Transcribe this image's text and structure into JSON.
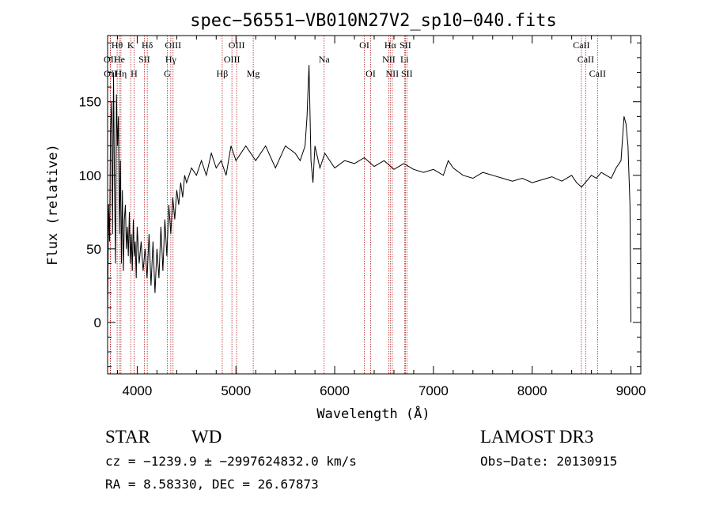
{
  "chart_data": {
    "type": "line",
    "title": "spec−56551−VB010N27V2_sp10−040.fits",
    "xlabel": "Wavelength (Å)",
    "ylabel": "Flux (relative)",
    "xlim": [
      3700,
      9100
    ],
    "ylim": [
      -35,
      195
    ],
    "xticks": [
      "4000",
      "5000",
      "6000",
      "7000",
      "8000",
      "9000"
    ],
    "yticks": [
      "0",
      "50",
      "100",
      "150"
    ],
    "grid": false,
    "line_color": "#000000",
    "marker_color": "#b22222",
    "series": [
      {
        "x": [
          3700,
          3710,
          3720,
          3730,
          3740,
          3750,
          3760,
          3770,
          3780,
          3790,
          3800,
          3810,
          3820,
          3830,
          3840,
          3850,
          3860,
          3870,
          3880,
          3890,
          3900,
          3910,
          3920,
          3930,
          3940,
          3950,
          3960,
          3970,
          3980,
          3990,
          4000,
          4020,
          4040,
          4060,
          4080,
          4100,
          4120,
          4140,
          4160,
          4180,
          4200,
          4220,
          4240,
          4260,
          4280,
          4300,
          4320,
          4340,
          4360,
          4380,
          4400,
          4420,
          4440,
          4460,
          4480,
          4500,
          4550,
          4600,
          4650,
          4700,
          4750,
          4800,
          4850,
          4900,
          4950,
          5000,
          5100,
          5200,
          5300,
          5400,
          5500,
          5600,
          5650,
          5700,
          5720,
          5740,
          5760,
          5780,
          5800,
          5850,
          5900,
          6000,
          6100,
          6200,
          6300,
          6400,
          6500,
          6600,
          6700,
          6800,
          6900,
          7000,
          7100,
          7150,
          7200,
          7300,
          7400,
          7500,
          7600,
          7700,
          7800,
          7900,
          8000,
          8100,
          8200,
          8300,
          8400,
          8450,
          8500,
          8550,
          8600,
          8650,
          8700,
          8750,
          8800,
          8850,
          8900,
          8930,
          8950,
          8970,
          8990,
          9000
        ],
        "y": [
          0,
          80,
          55,
          130,
          150,
          60,
          170,
          95,
          40,
          155,
          120,
          140,
          60,
          110,
          40,
          90,
          35,
          70,
          80,
          50,
          65,
          45,
          75,
          40,
          60,
          35,
          70,
          45,
          55,
          30,
          65,
          40,
          55,
          35,
          50,
          30,
          60,
          25,
          55,
          20,
          50,
          30,
          65,
          35,
          70,
          45,
          80,
          60,
          85,
          70,
          90,
          80,
          95,
          85,
          100,
          95,
          105,
          100,
          110,
          100,
          115,
          105,
          110,
          100,
          120,
          110,
          120,
          110,
          120,
          105,
          120,
          115,
          110,
          120,
          140,
          175,
          110,
          95,
          120,
          105,
          115,
          105,
          110,
          108,
          112,
          106,
          110,
          104,
          108,
          104,
          102,
          104,
          100,
          110,
          105,
          100,
          98,
          102,
          100,
          98,
          96,
          98,
          95,
          97,
          99,
          96,
          100,
          95,
          92,
          96,
          100,
          98,
          102,
          100,
          98,
          105,
          110,
          140,
          135,
          120,
          80,
          0
        ]
      }
    ],
    "spectral_lines": [
      {
        "label": "Hθ",
        "x": 3797,
        "row": 1
      },
      {
        "label": "K",
        "x": 3934,
        "row": 1
      },
      {
        "label": "Hδ",
        "x": 4102,
        "row": 1
      },
      {
        "label": "OIII",
        "x": 4363,
        "row": 1
      },
      {
        "label": "OIII",
        "x": 5007,
        "row": 1
      },
      {
        "label": "OI",
        "x": 6300,
        "row": 1
      },
      {
        "label": "Hα",
        "x": 6563,
        "row": 1
      },
      {
        "label": "SII",
        "x": 6716,
        "row": 1
      },
      {
        "label": "CaII",
        "x": 8498,
        "row": 1
      },
      {
        "label": "OII",
        "x": 3727,
        "row": 2
      },
      {
        "label": "He",
        "x": 3820,
        "row": 2
      },
      {
        "label": "SII",
        "x": 4072,
        "row": 2
      },
      {
        "label": "Hγ",
        "x": 4340,
        "row": 2
      },
      {
        "label": "OIII",
        "x": 4959,
        "row": 2
      },
      {
        "label": "Na",
        "x": 5893,
        "row": 2
      },
      {
        "label": "NII",
        "x": 6548,
        "row": 2
      },
      {
        "label": "Li",
        "x": 6707,
        "row": 2
      },
      {
        "label": "CaII",
        "x": 8542,
        "row": 2
      },
      {
        "label": "OII",
        "x": 3729,
        "row": 3
      },
      {
        "label": "Hη",
        "x": 3835,
        "row": 3
      },
      {
        "label": "H",
        "x": 3968,
        "row": 3
      },
      {
        "label": "G",
        "x": 4305,
        "row": 3
      },
      {
        "label": "Hβ",
        "x": 4861,
        "row": 3
      },
      {
        "label": "Mg",
        "x": 5175,
        "row": 3
      },
      {
        "label": "OI",
        "x": 6364,
        "row": 3
      },
      {
        "label": "NII",
        "x": 6583,
        "row": 3
      },
      {
        "label": "SII",
        "x": 6731,
        "row": 3
      },
      {
        "label": "CaII",
        "x": 8662,
        "row": 3
      }
    ]
  },
  "info": {
    "object_class": "STAR",
    "subclass": "WD",
    "survey": "LAMOST DR3",
    "cz_line": "cz = −1239.9 ± −2997624832.0 km/s",
    "obs_date": "Obs−Date: 20130915",
    "coords": "RA =   8.58330, DEC =  26.67873"
  }
}
